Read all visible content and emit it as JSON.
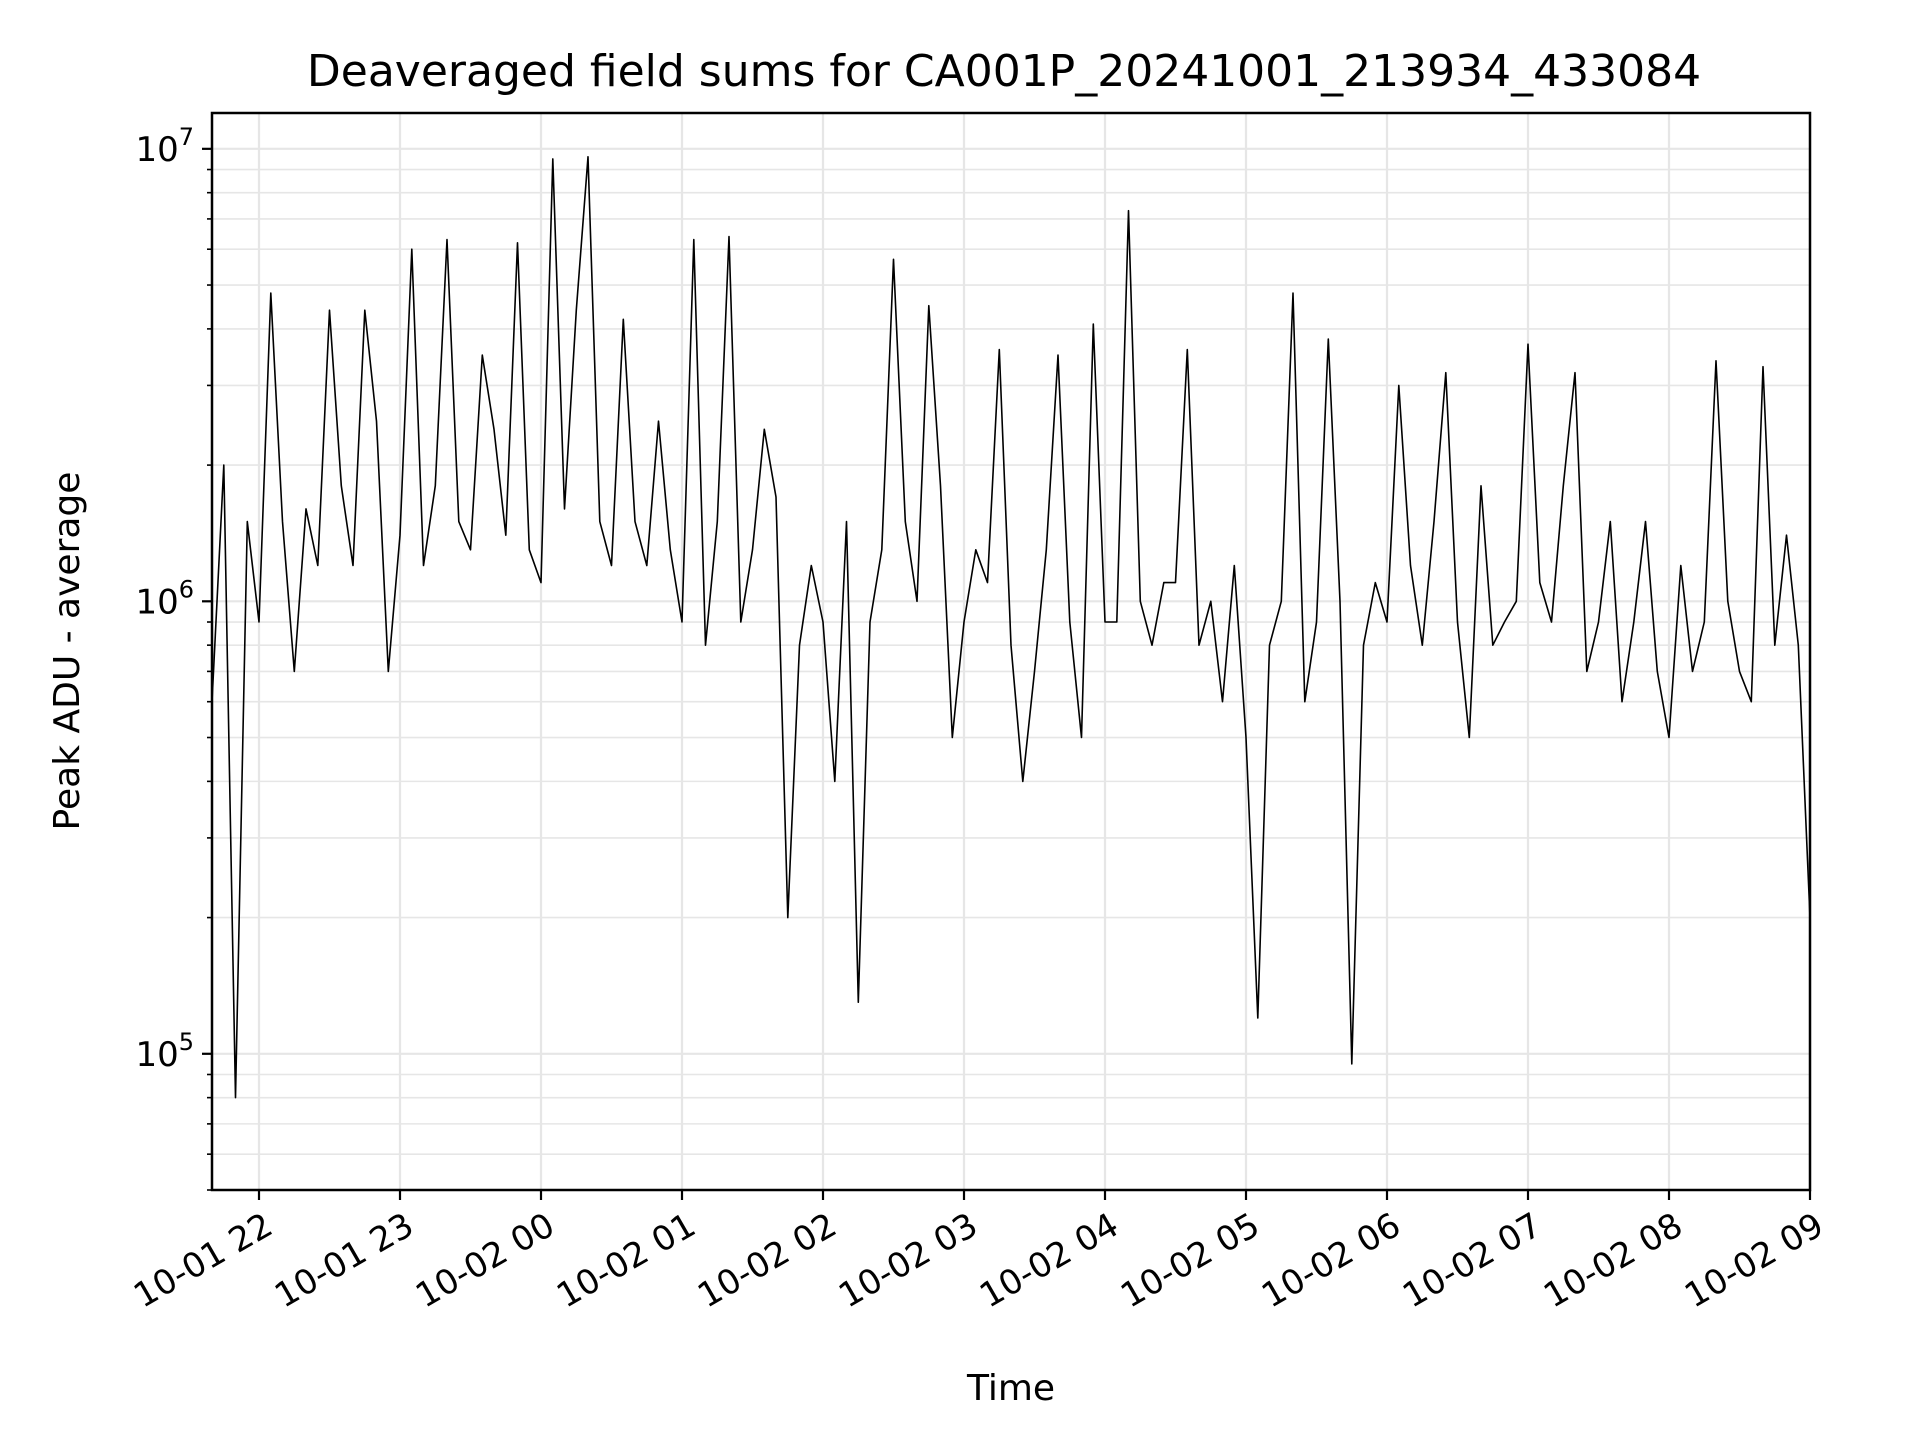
{
  "chart_data": {
    "type": "line",
    "title": "Deaveraged field sums for CA001P_20241001_213934_433084",
    "xlabel": "Time",
    "ylabel": "Peak ADU - average",
    "yscale": "log",
    "ylim": [
      50000,
      12000000
    ],
    "xlim": [
      "2024-10-01 21:40",
      "2024-10-02 09:00"
    ],
    "grid": true,
    "line_color": "#000000",
    "grid_color": "#e6e6e6",
    "x_ticks": [
      {
        "value": "2024-10-01 22:00",
        "label": "10-01 22"
      },
      {
        "value": "2024-10-01 23:00",
        "label": "10-01 23"
      },
      {
        "value": "2024-10-02 00:00",
        "label": "10-02 00"
      },
      {
        "value": "2024-10-02 01:00",
        "label": "10-02 01"
      },
      {
        "value": "2024-10-02 02:00",
        "label": "10-02 02"
      },
      {
        "value": "2024-10-02 03:00",
        "label": "10-02 03"
      },
      {
        "value": "2024-10-02 04:00",
        "label": "10-02 04"
      },
      {
        "value": "2024-10-02 05:00",
        "label": "10-02 05"
      },
      {
        "value": "2024-10-02 06:00",
        "label": "10-02 06"
      },
      {
        "value": "2024-10-02 07:00",
        "label": "10-02 07"
      },
      {
        "value": "2024-10-02 08:00",
        "label": "10-02 08"
      },
      {
        "value": "2024-10-02 09:00",
        "label": "10-02 09"
      }
    ],
    "y_ticks": [
      {
        "value": 100000,
        "base": "10",
        "exp": "5"
      },
      {
        "value": 1000000,
        "base": "10",
        "exp": "6"
      },
      {
        "value": 10000000,
        "base": "10",
        "exp": "7"
      }
    ],
    "series": [
      {
        "x": [
          "2024-10-01 21:40",
          "2024-10-01 21:45",
          "2024-10-01 21:50",
          "2024-10-01 21:55",
          "2024-10-01 22:00",
          "2024-10-01 22:05",
          "2024-10-01 22:10",
          "2024-10-01 22:15",
          "2024-10-01 22:20",
          "2024-10-01 22:25",
          "2024-10-01 22:30",
          "2024-10-01 22:35",
          "2024-10-01 22:40",
          "2024-10-01 22:45",
          "2024-10-01 22:50",
          "2024-10-01 22:55",
          "2024-10-01 23:00",
          "2024-10-01 23:05",
          "2024-10-01 23:10",
          "2024-10-01 23:15",
          "2024-10-01 23:20",
          "2024-10-01 23:25",
          "2024-10-01 23:30",
          "2024-10-01 23:35",
          "2024-10-01 23:40",
          "2024-10-01 23:45",
          "2024-10-01 23:50",
          "2024-10-01 23:55",
          "2024-10-02 00:00",
          "2024-10-02 00:05",
          "2024-10-02 00:10",
          "2024-10-02 00:15",
          "2024-10-02 00:20",
          "2024-10-02 00:25",
          "2024-10-02 00:30",
          "2024-10-02 00:35",
          "2024-10-02 00:40",
          "2024-10-02 00:45",
          "2024-10-02 00:50",
          "2024-10-02 00:55",
          "2024-10-02 01:00",
          "2024-10-02 01:05",
          "2024-10-02 01:10",
          "2024-10-02 01:15",
          "2024-10-02 01:20",
          "2024-10-02 01:25",
          "2024-10-02 01:30",
          "2024-10-02 01:35",
          "2024-10-02 01:40",
          "2024-10-02 01:45",
          "2024-10-02 01:50",
          "2024-10-02 01:55",
          "2024-10-02 02:00",
          "2024-10-02 02:05",
          "2024-10-02 02:10",
          "2024-10-02 02:15",
          "2024-10-02 02:20",
          "2024-10-02 02:25",
          "2024-10-02 02:30",
          "2024-10-02 02:35",
          "2024-10-02 02:40",
          "2024-10-02 02:45",
          "2024-10-02 02:50",
          "2024-10-02 02:55",
          "2024-10-02 03:00",
          "2024-10-02 03:05",
          "2024-10-02 03:10",
          "2024-10-02 03:15",
          "2024-10-02 03:20",
          "2024-10-02 03:25",
          "2024-10-02 03:30",
          "2024-10-02 03:35",
          "2024-10-02 03:40",
          "2024-10-02 03:45",
          "2024-10-02 03:50",
          "2024-10-02 03:55",
          "2024-10-02 04:00",
          "2024-10-02 04:05",
          "2024-10-02 04:10",
          "2024-10-02 04:15",
          "2024-10-02 04:20",
          "2024-10-02 04:25",
          "2024-10-02 04:30",
          "2024-10-02 04:35",
          "2024-10-02 04:40",
          "2024-10-02 04:45",
          "2024-10-02 04:50",
          "2024-10-02 04:55",
          "2024-10-02 05:00",
          "2024-10-02 05:05",
          "2024-10-02 05:10",
          "2024-10-02 05:15",
          "2024-10-02 05:20",
          "2024-10-02 05:25",
          "2024-10-02 05:30",
          "2024-10-02 05:35",
          "2024-10-02 05:40",
          "2024-10-02 05:45",
          "2024-10-02 05:50",
          "2024-10-02 05:55",
          "2024-10-02 06:00",
          "2024-10-02 06:05",
          "2024-10-02 06:10",
          "2024-10-02 06:15",
          "2024-10-02 06:20",
          "2024-10-02 06:25",
          "2024-10-02 06:30",
          "2024-10-02 06:35",
          "2024-10-02 06:40",
          "2024-10-02 06:45",
          "2024-10-02 06:50",
          "2024-10-02 06:55",
          "2024-10-02 07:00",
          "2024-10-02 07:05",
          "2024-10-02 07:10",
          "2024-10-02 07:15",
          "2024-10-02 07:20",
          "2024-10-02 07:25",
          "2024-10-02 07:30",
          "2024-10-02 07:35",
          "2024-10-02 07:40",
          "2024-10-02 07:45",
          "2024-10-02 07:50",
          "2024-10-02 07:55",
          "2024-10-02 08:00",
          "2024-10-02 08:05",
          "2024-10-02 08:10",
          "2024-10-02 08:15",
          "2024-10-02 08:20",
          "2024-10-02 08:25",
          "2024-10-02 08:30",
          "2024-10-02 08:35",
          "2024-10-02 08:40",
          "2024-10-02 08:45",
          "2024-10-02 08:50",
          "2024-10-02 08:55",
          "2024-10-02 09:00"
        ],
        "values": [
          600000,
          2000000,
          80000,
          1500000,
          900000,
          4800000,
          1500000,
          700000,
          1600000,
          1200000,
          4400000,
          1800000,
          1200000,
          4400000,
          2500000,
          700000,
          1400000,
          6000000,
          1200000,
          1800000,
          6300000,
          1500000,
          1300000,
          3500000,
          2400000,
          1400000,
          6200000,
          1300000,
          1100000,
          9500000,
          1600000,
          4400000,
          9600000,
          1500000,
          1200000,
          4200000,
          1500000,
          1200000,
          2500000,
          1300000,
          900000,
          6300000,
          800000,
          1500000,
          6400000,
          900000,
          1300000,
          2400000,
          1700000,
          200000,
          800000,
          1200000,
          900000,
          400000,
          1500000,
          130000,
          900000,
          1300000,
          5700000,
          1500000,
          1000000,
          4500000,
          1800000,
          500000,
          900000,
          1300000,
          1100000,
          3600000,
          800000,
          400000,
          700000,
          1300000,
          3500000,
          900000,
          500000,
          4100000,
          900000,
          900000,
          7300000,
          1000000,
          800000,
          1100000,
          1100000,
          3600000,
          800000,
          1000000,
          600000,
          1200000,
          500000,
          120000,
          800000,
          1000000,
          4800000,
          600000,
          900000,
          3800000,
          1000000,
          95000,
          800000,
          1100000,
          900000,
          3000000,
          1200000,
          800000,
          1500000,
          3200000,
          900000,
          500000,
          1800000,
          800000,
          900000,
          1000000,
          3700000,
          1100000,
          900000,
          1800000,
          3200000,
          700000,
          900000,
          1500000,
          600000,
          900000,
          1500000,
          700000,
          500000,
          1200000,
          700000,
          900000,
          3400000,
          1000000,
          700000,
          600000,
          3300000,
          800000,
          1400000,
          800000,
          200000
        ]
      }
    ]
  }
}
